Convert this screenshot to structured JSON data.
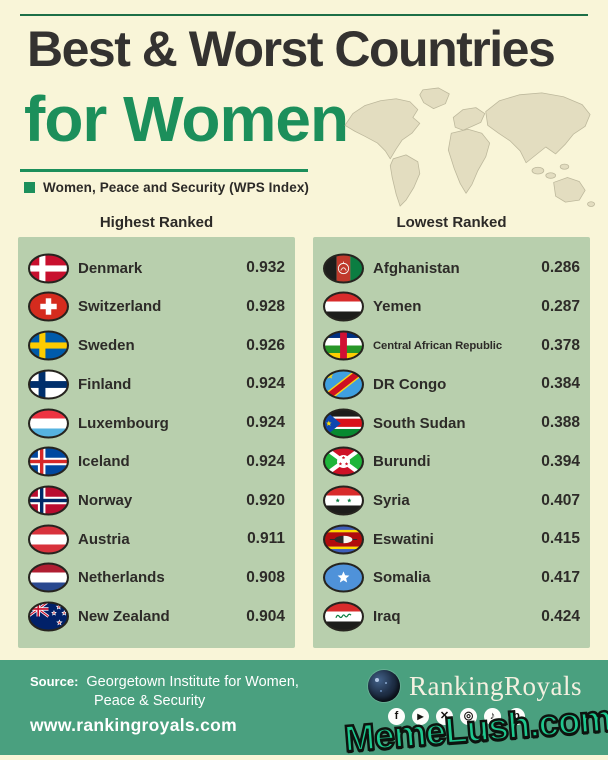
{
  "header": {
    "title_line1": "Best & Worst Countries",
    "title_line2": "for Women",
    "legend": "Women, Peace and Security (WPS Index)"
  },
  "columns": {
    "highest_heading": "Highest Ranked",
    "lowest_heading": "Lowest Ranked"
  },
  "panels": {
    "highest": {
      "rows": [
        {
          "country": "Denmark",
          "score": "0.932",
          "flag": "denmark"
        },
        {
          "country": "Switzerland",
          "score": "0.928",
          "flag": "switzerland"
        },
        {
          "country": "Sweden",
          "score": "0.926",
          "flag": "sweden"
        },
        {
          "country": "Finland",
          "score": "0.924",
          "flag": "finland"
        },
        {
          "country": "Luxembourg",
          "score": "0.924",
          "flag": "luxembourg"
        },
        {
          "country": "Iceland",
          "score": "0.924",
          "flag": "iceland"
        },
        {
          "country": "Norway",
          "score": "0.920",
          "flag": "norway"
        },
        {
          "country": "Austria",
          "score": "0.911",
          "flag": "austria"
        },
        {
          "country": "Netherlands",
          "score": "0.908",
          "flag": "netherlands"
        },
        {
          "country": "New Zealand",
          "score": "0.904",
          "flag": "newzealand"
        }
      ]
    },
    "lowest": {
      "rows": [
        {
          "country": "Afghanistan",
          "score": "0.286",
          "flag": "afghanistan"
        },
        {
          "country": "Yemen",
          "score": "0.287",
          "flag": "yemen"
        },
        {
          "country": "Central African Republic",
          "score": "0.378",
          "flag": "car"
        },
        {
          "country": "DR Congo",
          "score": "0.384",
          "flag": "drcongo"
        },
        {
          "country": "South Sudan",
          "score": "0.388",
          "flag": "southsudan"
        },
        {
          "country": "Burundi",
          "score": "0.394",
          "flag": "burundi"
        },
        {
          "country": "Syria",
          "score": "0.407",
          "flag": "syria"
        },
        {
          "country": "Eswatini",
          "score": "0.415",
          "flag": "eswatini"
        },
        {
          "country": "Somalia",
          "score": "0.417",
          "flag": "somalia"
        },
        {
          "country": "Iraq",
          "score": "0.424",
          "flag": "iraq"
        }
      ]
    }
  },
  "footer": {
    "source_label": "Source:",
    "source_text_line1": "Georgetown Institute for Women,",
    "source_text_line2": "Peace & Security",
    "website": "www.rankingroyals.com",
    "brand_name": "RankingRoyals",
    "social_icons": [
      "facebook",
      "youtube",
      "x-twitter",
      "instagram",
      "tiktok",
      "pinterest"
    ],
    "watermark": "MemeLush.com"
  },
  "colors": {
    "background_cream": "#f9f5d8",
    "title_dark": "#343230",
    "accent_green": "#1c8f5b",
    "panel_green": "#b8cfad",
    "footer_green": "#4aa07f",
    "watermark_green": "#1ec78e",
    "map_fill": "#e3decl"
  },
  "chart_data": {
    "type": "table",
    "title": "Best & Worst Countries for Women",
    "subtitle": "Women, Peace and Security (WPS Index)",
    "legend_position": "top-left",
    "series": [
      {
        "name": "Highest Ranked",
        "categories": [
          "Denmark",
          "Switzerland",
          "Sweden",
          "Finland",
          "Luxembourg",
          "Iceland",
          "Norway",
          "Austria",
          "Netherlands",
          "New Zealand"
        ],
        "values": [
          0.932,
          0.928,
          0.926,
          0.924,
          0.924,
          0.924,
          0.92,
          0.911,
          0.908,
          0.904
        ]
      },
      {
        "name": "Lowest Ranked",
        "categories": [
          "Afghanistan",
          "Yemen",
          "Central African Republic",
          "DR Congo",
          "South Sudan",
          "Burundi",
          "Syria",
          "Eswatini",
          "Somalia",
          "Iraq"
        ],
        "values": [
          0.286,
          0.287,
          0.378,
          0.384,
          0.388,
          0.394,
          0.407,
          0.415,
          0.417,
          0.424
        ]
      }
    ]
  }
}
